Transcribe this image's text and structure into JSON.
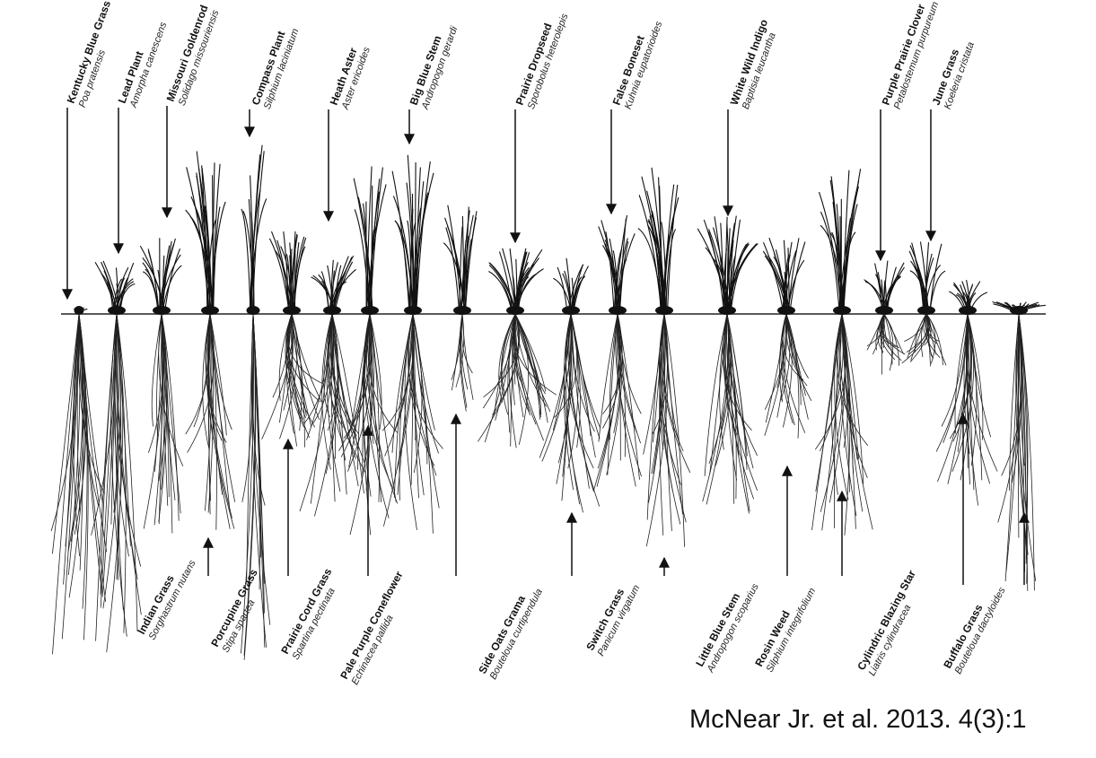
{
  "top_labels": [
    {
      "common": "Kentucky Blue Grass",
      "scientific": "Poa pratensis"
    },
    {
      "common": "Lead Plant",
      "scientific": "Amorpha canescens"
    },
    {
      "common": "Missouri Goldenrod",
      "scientific": "Solidago missouriensis"
    },
    {
      "common": "Compass Plant",
      "scientific": "Silphium laciniatum"
    },
    {
      "common": "Heath Aster",
      "scientific": "Aster ericoides"
    },
    {
      "common": "Big Blue Stem",
      "scientific": "Andropogon gerardi"
    },
    {
      "common": "Prairie Dropseed",
      "scientific": "Sporobolus heterolepis"
    },
    {
      "common": "False Boneset",
      "scientific": "Kuhnia eupatorioides"
    },
    {
      "common": "White Wild Indigo",
      "scientific": "Baptisia leucantha"
    },
    {
      "common": "Purple Prairie Clover",
      "scientific": "Petalostemum purpureum"
    },
    {
      "common": "June Grass",
      "scientific": "Koeleria cristata"
    }
  ],
  "bottom_labels": [
    {
      "common": "Indian Grass",
      "scientific": "Sorghastrum nutans"
    },
    {
      "common": "Porcupine Grass",
      "scientific": "Stipa spartea"
    },
    {
      "common": "Prairie Cord Grass",
      "scientific": "Spartina pectinata"
    },
    {
      "common": "Pale Purple Coneflower",
      "scientific": "Echinacea pallida"
    },
    {
      "common": "Side Oats Grama",
      "scientific": "Bouteloua curtipendula"
    },
    {
      "common": "Switch Grass",
      "scientific": "Panicum virgatum"
    },
    {
      "common": "Little Blue Stem",
      "scientific": "Andropogon scoparius"
    },
    {
      "common": "Rosin Weed",
      "scientific": "Silphium integrifolium"
    },
    {
      "common": "Cylindric Blazing Star",
      "scientific": "Liatris cylindracea"
    },
    {
      "common": "Buffalo Grass",
      "scientific": "Bouteloua dactyloides"
    }
  ],
  "citation": "McNear Jr. et al. 2013. 4(3):1"
}
